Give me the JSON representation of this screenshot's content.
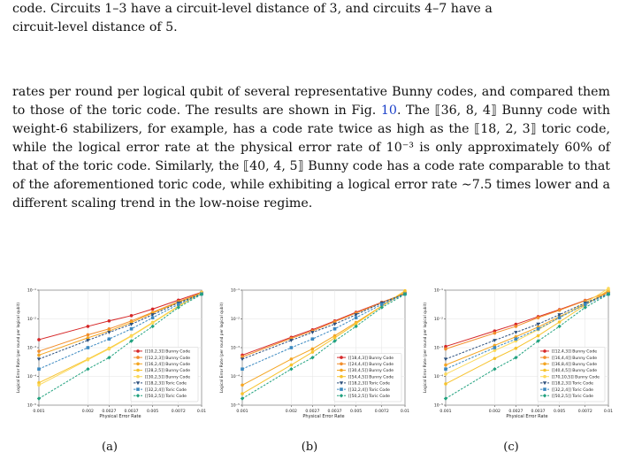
{
  "text": {
    "para1_line1": "code.  Circuits 1–3 have a circuit-level distance of 3, and circuits 4–7 have a",
    "para1_line2": "circuit-level distance of 5.",
    "para2_pre": "rates per round per logical qubit of several representative Bunny codes, and compared them to those of the toric code. The results are shown in Fig. ",
    "para2_ref": "10",
    "para2_post": ". The ⟦36, 8, 4⟧ Bunny code with weight-6 stabilizers, for example, has a code rate twice as high as the ⟦18, 2, 3⟧ toric code, while the logical error rate at the physical error rate of 10⁻³ is only approximately 60% of that of the toric code. Similarly, the ⟦40, 4, 5⟧ Bunny code has a code rate comparable to that of the aforementioned toric code, while exhibiting a logical error rate ∼7.5 times lower and a different scaling trend in the low-noise regime."
  },
  "colors": {
    "c_red": "#d62728",
    "c_orange": "#f28e2b",
    "c_orange2": "#f4a522",
    "c_yellow": "#f7c32e",
    "c_yellow2": "#fcd95a",
    "t_navy": "#2c4f7c",
    "t_blue": "#3a88c0",
    "t_teal": "#22a27f"
  },
  "chart_data": [
    {
      "type": "line",
      "caption": "(a)",
      "xlabel": "Physical Error Rate",
      "ylabel": "Logical Error Rate (per round per logical qubit)",
      "xscale": "log",
      "yscale": "log",
      "xticks": [
        "0.001",
        "0.002",
        "0.0027",
        "0.0037",
        "0.005",
        "0.0072",
        "0.01"
      ],
      "yticks": [
        "10⁻¹",
        "10⁻²",
        "10⁻³",
        "10⁻⁴",
        "10⁻⁵"
      ],
      "legend_position": "lower-right",
      "x": [
        0.001,
        0.002,
        0.0027,
        0.0037,
        0.005,
        0.0072,
        0.01
      ],
      "series": [
        {
          "name": "[[10,2,3]] Bunny Code",
          "color": "#d62728",
          "dashed": false,
          "marker": "circle",
          "values": [
            0.0019,
            0.0055,
            0.0085,
            0.013,
            0.022,
            0.045,
            0.085
          ]
        },
        {
          "name": "[[12,2,3]] Bunny Code",
          "color": "#f28e2b",
          "dashed": false,
          "marker": "circle",
          "values": [
            0.00075,
            0.0028,
            0.0045,
            0.0085,
            0.017,
            0.04,
            0.08
          ]
        },
        {
          "name": "[[16,2,4]] Bunny Code",
          "color": "#f4a522",
          "dashed": false,
          "marker": "circle",
          "values": [
            0.00055,
            0.0022,
            0.0038,
            0.0075,
            0.016,
            0.038,
            0.08
          ]
        },
        {
          "name": "[[28,2,5]] Bunny Code",
          "color": "#f7c32e",
          "dashed": false,
          "marker": "circle",
          "values": [
            6e-05,
            0.0004,
            0.00095,
            0.0026,
            0.0075,
            0.028,
            0.085
          ]
        },
        {
          "name": "[[30,2,5]] Bunny Code",
          "color": "#fcd95a",
          "dashed": false,
          "marker": "circle",
          "values": [
            5e-05,
            0.00038,
            0.0009,
            0.0025,
            0.0072,
            0.027,
            0.08
          ]
        },
        {
          "name": "[[18,2,3]] Toric Code",
          "color": "#2c4f7c",
          "dashed": true,
          "marker": "triangle",
          "values": [
            0.0004,
            0.0018,
            0.0034,
            0.0065,
            0.014,
            0.036,
            0.075
          ]
        },
        {
          "name": "[[32,2,4]] Toric Code",
          "color": "#3a88c0",
          "dashed": true,
          "marker": "square",
          "values": [
            0.00018,
            0.001,
            0.002,
            0.0045,
            0.011,
            0.032,
            0.073
          ]
        },
        {
          "name": "[[50,2,5]] Toric Code",
          "color": "#22a27f",
          "dashed": true,
          "marker": "diamond",
          "values": [
            1.7e-05,
            0.00018,
            0.00045,
            0.0017,
            0.0055,
            0.025,
            0.072
          ]
        }
      ]
    },
    {
      "type": "line",
      "caption": "(b)",
      "xlabel": "Physical Error Rate",
      "ylabel": "Logical Error Rate (per round per logical qubit)",
      "xscale": "log",
      "yscale": "log",
      "xticks": [
        "0.001",
        "0.002",
        "0.0027",
        "0.0037",
        "0.005",
        "0.0072",
        "0.01"
      ],
      "yticks": [
        "10⁻¹",
        "10⁻²",
        "10⁻³",
        "10⁻⁴",
        "10⁻⁵"
      ],
      "legend_position": "lower-right",
      "x": [
        0.001,
        0.002,
        0.0027,
        0.0037,
        0.005,
        0.0072,
        0.01
      ],
      "series": [
        {
          "name": "[[18,4,3]] Bunny Code",
          "color": "#d62728",
          "dashed": false,
          "marker": "circle",
          "values": [
            0.00055,
            0.0023,
            0.0042,
            0.0085,
            0.017,
            0.038,
            0.075
          ]
        },
        {
          "name": "[[24,4,4]] Bunny Code",
          "color": "#f28e2b",
          "dashed": false,
          "marker": "circle",
          "values": [
            0.00048,
            0.0021,
            0.0038,
            0.008,
            0.016,
            0.037,
            0.078
          ]
        },
        {
          "name": "[[30,4,5]] Bunny Code",
          "color": "#f4a522",
          "dashed": false,
          "marker": "circle",
          "values": [
            5e-05,
            0.0004,
            0.0009,
            0.0026,
            0.0075,
            0.028,
            0.085
          ]
        },
        {
          "name": "[[54,4,5]] Bunny Code",
          "color": "#f7c32e",
          "dashed": false,
          "marker": "circle",
          "values": [
            2.5e-05,
            0.00025,
            0.0007,
            0.0022,
            0.0068,
            0.028,
            0.095
          ]
        },
        {
          "name": "[[18,2,3]] Toric Code",
          "color": "#2c4f7c",
          "dashed": true,
          "marker": "triangle",
          "values": [
            0.0004,
            0.0018,
            0.0034,
            0.0066,
            0.014,
            0.036,
            0.075
          ]
        },
        {
          "name": "[[32,2,4]] Toric Code",
          "color": "#3a88c0",
          "dashed": true,
          "marker": "square",
          "values": [
            0.00018,
            0.001,
            0.002,
            0.0045,
            0.011,
            0.032,
            0.073
          ]
        },
        {
          "name": "[[50,2,5]] Toric Code",
          "color": "#22a27f",
          "dashed": true,
          "marker": "diamond",
          "values": [
            1.7e-05,
            0.00018,
            0.00045,
            0.0017,
            0.0055,
            0.025,
            0.072
          ]
        }
      ]
    },
    {
      "type": "line",
      "caption": "(c)",
      "xlabel": "Physical Error Rate",
      "ylabel": "Logical Error Rate (per round per logical qubit)",
      "xscale": "log",
      "yscale": "log",
      "xticks": [
        "0.001",
        "0.002",
        "0.0027",
        "0.0037",
        "0.005",
        "0.0072",
        "0.01"
      ],
      "yticks": [
        "10⁻¹",
        "10⁻²",
        "10⁻³",
        "10⁻⁴",
        "10⁻⁵"
      ],
      "legend_position": "lower-right",
      "x": [
        0.001,
        0.002,
        0.0027,
        0.0037,
        0.005,
        0.0072,
        0.01
      ],
      "series": [
        {
          "name": "[[12,4,3]] Bunny Code",
          "color": "#d62728",
          "dashed": false,
          "marker": "circle",
          "values": [
            0.0011,
            0.0038,
            0.0065,
            0.012,
            0.021,
            0.044,
            0.085
          ]
        },
        {
          "name": "[[16,4,4]] Bunny Code",
          "color": "#f28e2b",
          "dashed": false,
          "marker": "circle",
          "values": [
            0.0009,
            0.0032,
            0.0055,
            0.011,
            0.02,
            0.043,
            0.088
          ]
        },
        {
          "name": "[[36,8,4]] Bunny Code",
          "color": "#f4a522",
          "dashed": false,
          "marker": "circle",
          "values": [
            0.00025,
            0.0012,
            0.0024,
            0.0052,
            0.012,
            0.032,
            0.085
          ]
        },
        {
          "name": "[[40,4,5]] Bunny Code",
          "color": "#f7c32e",
          "dashed": false,
          "marker": "circle",
          "values": [
            5.5e-05,
            0.00042,
            0.00095,
            0.0026,
            0.0078,
            0.03,
            0.1
          ]
        },
        {
          "name": "[[70,10,5]] Bunny Code",
          "color": "#fcd95a",
          "dashed": false,
          "marker": "circle",
          "values": [
            0.00012,
            0.0008,
            0.0017,
            0.0042,
            0.011,
            0.036,
            0.115
          ]
        },
        {
          "name": "[[18,2,3]] Toric Code",
          "color": "#2c4f7c",
          "dashed": true,
          "marker": "triangle",
          "values": [
            0.0004,
            0.0018,
            0.0034,
            0.0066,
            0.014,
            0.036,
            0.075
          ]
        },
        {
          "name": "[[32,2,4]] Toric Code",
          "color": "#3a88c0",
          "dashed": true,
          "marker": "square",
          "values": [
            0.00018,
            0.001,
            0.002,
            0.0045,
            0.011,
            0.032,
            0.073
          ]
        },
        {
          "name": "[[50,2,5]] Toric Code",
          "color": "#22a27f",
          "dashed": true,
          "marker": "diamond",
          "values": [
            1.7e-05,
            0.00018,
            0.00045,
            0.0017,
            0.0055,
            0.025,
            0.072
          ]
        }
      ]
    }
  ]
}
